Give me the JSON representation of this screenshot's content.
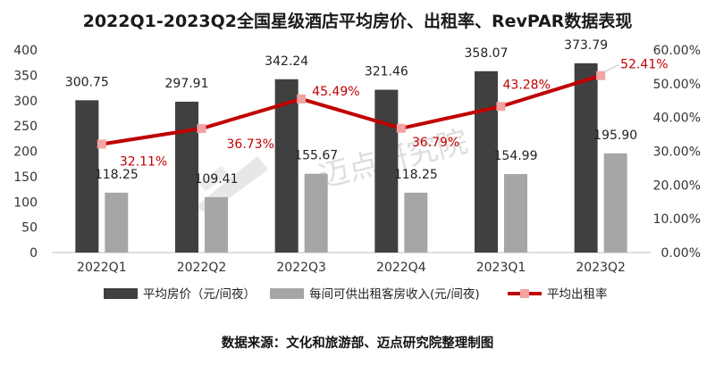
{
  "chart_data": {
    "type": "bar",
    "title": "2022Q1-2023Q2全国星级酒店平均房价、出租率、RevPAR数据表现",
    "categories": [
      "2022Q1",
      "2022Q2",
      "2022Q3",
      "2022Q4",
      "2023Q1",
      "2023Q2"
    ],
    "series": [
      {
        "name": "平均房价（元/间夜）",
        "type": "bar",
        "axis": "left",
        "color": "#404040",
        "values": [
          300.75,
          297.91,
          342.24,
          321.46,
          358.07,
          373.79
        ],
        "labels": [
          "300.75",
          "297.91",
          "342.24",
          "321.46",
          "358.07",
          "373.79"
        ]
      },
      {
        "name": "每间可供出租客房收入(元/间夜)",
        "type": "bar",
        "axis": "left",
        "color": "#a6a6a6",
        "values": [
          118.25,
          109.41,
          155.67,
          118.25,
          154.99,
          195.9
        ],
        "labels": [
          "118.25",
          "109.41",
          "155.67",
          "118.25",
          "154.99",
          "195.90"
        ]
      },
      {
        "name": "平均出租率",
        "type": "line",
        "axis": "right",
        "color": "#c00000",
        "marker_color": "#f4a3a3",
        "values": [
          32.11,
          36.73,
          45.49,
          36.79,
          43.28,
          52.41
        ],
        "labels": [
          "32.11%",
          "36.73%",
          "45.49%",
          "36.79%",
          "43.28%",
          "52.41%"
        ]
      }
    ],
    "y_left": {
      "min": 0,
      "max": 400,
      "ticks": [
        "0",
        "50",
        "100",
        "150",
        "200",
        "250",
        "300",
        "350",
        "400"
      ]
    },
    "y_right": {
      "min": 0,
      "max": 60,
      "ticks": [
        "0.00%",
        "10.00%",
        "20.00%",
        "30.00%",
        "40.00%",
        "50.00%",
        "60.00%"
      ]
    },
    "grid": false,
    "legend_position": "bottom",
    "source": "数据来源：文化和旅游部、迈点研究院整理制图",
    "watermark": "迈点研究院"
  }
}
